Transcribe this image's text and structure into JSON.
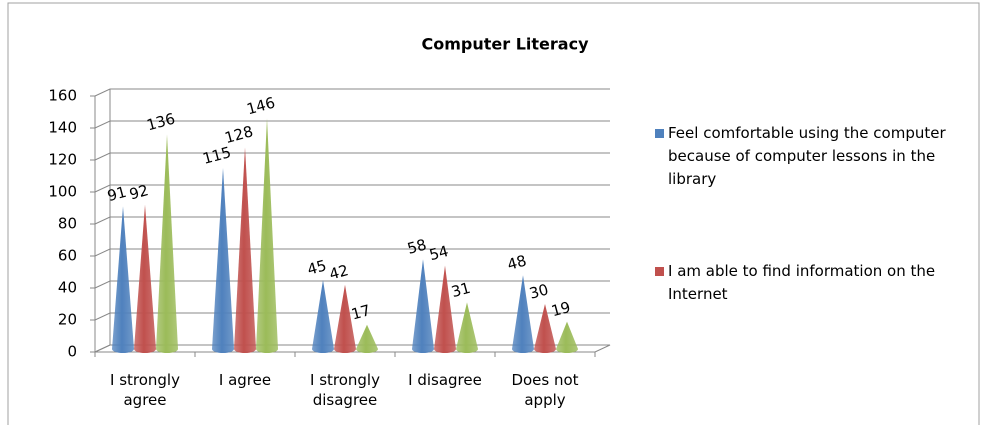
{
  "chart_data": {
    "type": "cone",
    "title": "Computer Literacy",
    "categories": [
      "I strongly agree",
      "I agree",
      "I strongly disagree",
      "I disagree",
      "Does not apply"
    ],
    "series": [
      {
        "name": "Feel comfortable using the computer because of computer lessons in the library",
        "color": "#4f81bd",
        "values": [
          91,
          115,
          45,
          58,
          48
        ]
      },
      {
        "name": "I am able to find information on the Internet",
        "color": "#c0504d",
        "values": [
          92,
          128,
          42,
          54,
          30
        ]
      },
      {
        "color": "#9bbb59",
        "values": [
          136,
          146,
          17,
          31,
          19
        ]
      }
    ],
    "ylim": [
      0,
      160
    ],
    "yticks": [
      0,
      20,
      40,
      60,
      80,
      100,
      120,
      140,
      160
    ],
    "grid": true,
    "legend": "right"
  }
}
